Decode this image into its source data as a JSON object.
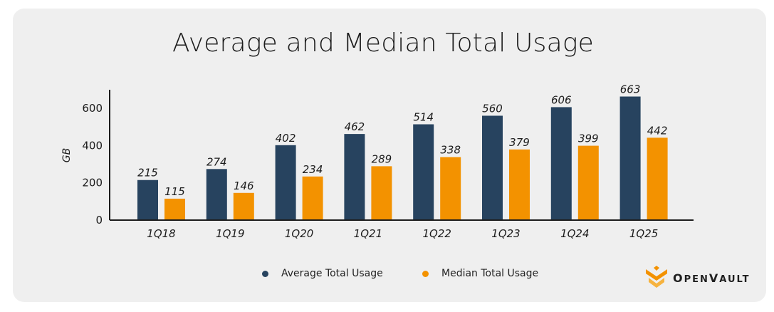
{
  "chart_data": {
    "type": "bar",
    "title": "Average and Median Total Usage",
    "xlabel": "",
    "ylabel": "GB",
    "ylim": [
      0,
      700
    ],
    "yticks": [
      0,
      200,
      400,
      600
    ],
    "categories": [
      "1Q18",
      "1Q19",
      "1Q20",
      "1Q21",
      "1Q22",
      "1Q23",
      "1Q24",
      "1Q25"
    ],
    "series": [
      {
        "name": "Average Total Usage",
        "color": "#27435f",
        "values": [
          215,
          274,
          402,
          462,
          514,
          560,
          606,
          663
        ]
      },
      {
        "name": "Median Total Usage",
        "color": "#f39200",
        "values": [
          115,
          146,
          234,
          289,
          338,
          379,
          399,
          442
        ]
      }
    ],
    "legend_position": "bottom-center",
    "grid": false
  },
  "logo": {
    "text": "OpenVault",
    "icon": "openvault-logo-icon"
  }
}
